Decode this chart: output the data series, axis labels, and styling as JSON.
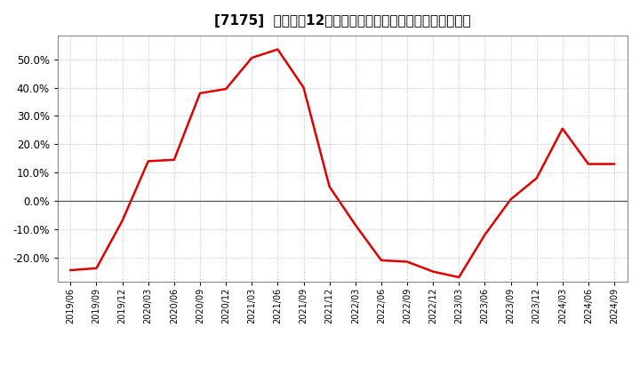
{
  "title": "[7175]  売上高の12か月移動合計の対前年同期増減率の推移",
  "x_labels": [
    "2019/06",
    "2019/09",
    "2019/12",
    "2020/03",
    "2020/06",
    "2020/09",
    "2020/12",
    "2021/03",
    "2021/06",
    "2021/09",
    "2021/12",
    "2022/03",
    "2022/06",
    "2022/09",
    "2022/12",
    "2023/03",
    "2023/06",
    "2023/09",
    "2023/12",
    "2024/03",
    "2024/06",
    "2024/09"
  ],
  "y_values": [
    -0.245,
    -0.238,
    -0.07,
    0.14,
    0.145,
    0.38,
    0.395,
    0.505,
    0.535,
    0.4,
    0.05,
    -0.085,
    -0.21,
    -0.215,
    -0.25,
    -0.27,
    -0.12,
    0.005,
    0.08,
    0.255,
    0.13,
    0.13
  ],
  "line_color": "#dd0000",
  "line_width": 1.8,
  "bg_color": "#ffffff",
  "plot_bg_color": "#ffffff",
  "grid_color": "#bbbbbb",
  "ylim": [
    -0.285,
    0.585
  ],
  "yticks": [
    -0.2,
    -0.1,
    0.0,
    0.1,
    0.2,
    0.3,
    0.4,
    0.5
  ],
  "zero_line_color": "#555555",
  "title_fontsize": 11,
  "tick_fontsize": 8.5,
  "xlabel_fontsize": 7.0
}
